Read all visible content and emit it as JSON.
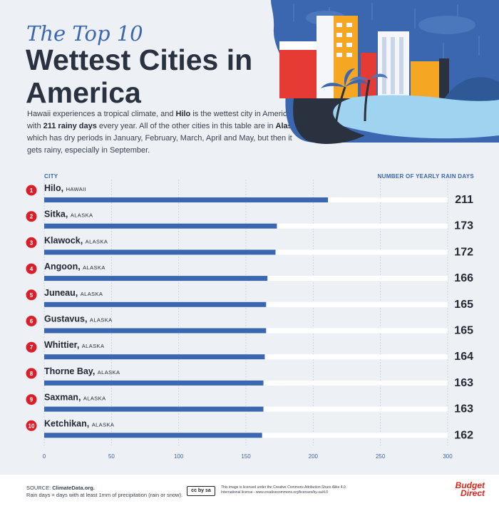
{
  "header": {
    "kicker": "The Top 10",
    "title": "Wettest Cities in America",
    "intro": {
      "p1": "Hawaii experiences a tropical climate, and ",
      "hilo": "Hilo",
      "p2": " is the wettest city in America, with ",
      "days": "211 rainy days",
      "p3": " every year. All of the other cities in this table are in ",
      "alaska": "Alaska",
      "p4": ", which has dry periods in January, February, March, April and May, but then it gets rainy, especially in September."
    }
  },
  "colors": {
    "bar": "#3b67b0",
    "track": "#ffffff",
    "rank_badge": "#d81f2a",
    "text": "#232a35",
    "brand": "#e2231a"
  },
  "chart_data": {
    "type": "bar",
    "orientation": "horizontal",
    "xlabel": "CITY",
    "ylabel": "NUMBER OF YEARLY RAIN DAYS",
    "xlim": [
      0,
      300
    ],
    "ticks": [
      0,
      50,
      100,
      150,
      200,
      250,
      300
    ],
    "grid": true,
    "rows": [
      {
        "rank": "1",
        "city": "Hilo,",
        "state": "HAWAII",
        "value": 211
      },
      {
        "rank": "2",
        "city": "Sitka,",
        "state": "ALASKA",
        "value": 173
      },
      {
        "rank": "3",
        "city": "Klawock,",
        "state": "ALASKA",
        "value": 172
      },
      {
        "rank": "4",
        "city": "Angoon,",
        "state": "ALASKA",
        "value": 166
      },
      {
        "rank": "5",
        "city": "Juneau,",
        "state": "ALASKA",
        "value": 165
      },
      {
        "rank": "6",
        "city": "Gustavus,",
        "state": "ALASKA",
        "value": 165
      },
      {
        "rank": "7",
        "city": "Whittier,",
        "state": "ALASKA",
        "value": 164
      },
      {
        "rank": "8",
        "city": "Thorne Bay,",
        "state": "ALASKA",
        "value": 163
      },
      {
        "rank": "9",
        "city": "Saxman,",
        "state": "ALASKA",
        "value": 163
      },
      {
        "rank": "10",
        "city": "Ketchikan,",
        "state": "ALASKA",
        "value": 162
      }
    ]
  },
  "footer": {
    "source_label": "SOURCE: ",
    "source_name": "ClimateData.org.",
    "note": "Rain days = days with at least 1mm of precipitation (rain or snow).",
    "cc_badge": "cc by sa",
    "license": "This image is licensed under the Creative Commons Attribution-Share Alike 4.0 International license - www.creativecommons.org/licenses/by-sa/4.0",
    "brand_line1": "Budget",
    "brand_line2": "Direct"
  }
}
